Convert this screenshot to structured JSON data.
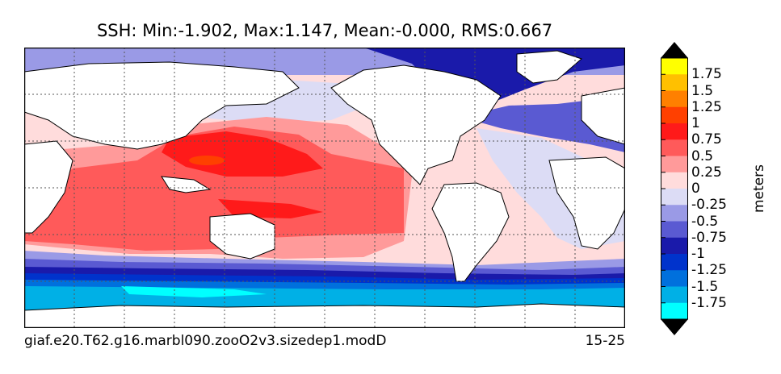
{
  "title": "SSH: Min:-1.902, Max:1.147, Mean:-0.000, RMS:0.667",
  "footer": {
    "case_name": "giaf.e20.T62.g16.marbl090.zooO2v3.sizedep1.modD",
    "years": "15-25"
  },
  "colorbar": {
    "units": "meters",
    "labels": [
      "1.75",
      "1.5",
      "1.25",
      "1",
      "0.75",
      "0.5",
      "0.25",
      "0",
      "-0.25",
      "-0.5",
      "-0.75",
      "-1",
      "-1.25",
      "-1.5",
      "-1.75"
    ],
    "colors_top_to_bottom": [
      "#ffff00",
      "#ffc000",
      "#ff8000",
      "#ff4000",
      "#ff1a1a",
      "#ff5a5a",
      "#ff9a9a",
      "#ffdcdc",
      "#dcdcf5",
      "#9a9ae6",
      "#5a5ad2",
      "#1a1aaa",
      "#0033cc",
      "#0070dd",
      "#00b0e6",
      "#00ffff"
    ]
  },
  "map": {
    "land_color": "#ffffff",
    "ocean_colors": {
      "arctic": "#9a9ae6",
      "arctic_deep": "#1a1aaa",
      "north_atlantic": "#5a5ad2",
      "subpolar": "#dcdcf5",
      "pacific": "#ff9a9a",
      "tropics_pale": "#ffdcdc",
      "warm_pool": "#ff5a5a",
      "warm_core": "#ff1a1a",
      "hot": "#ff4000",
      "acc_1": "#9a9ae6",
      "acc_2": "#5a5ad2",
      "acc_3": "#1a1aaa",
      "acc_4": "#0033cc",
      "acc_5": "#0070dd",
      "acc_6": "#00b0e6",
      "acc_7": "#00ffff"
    }
  }
}
